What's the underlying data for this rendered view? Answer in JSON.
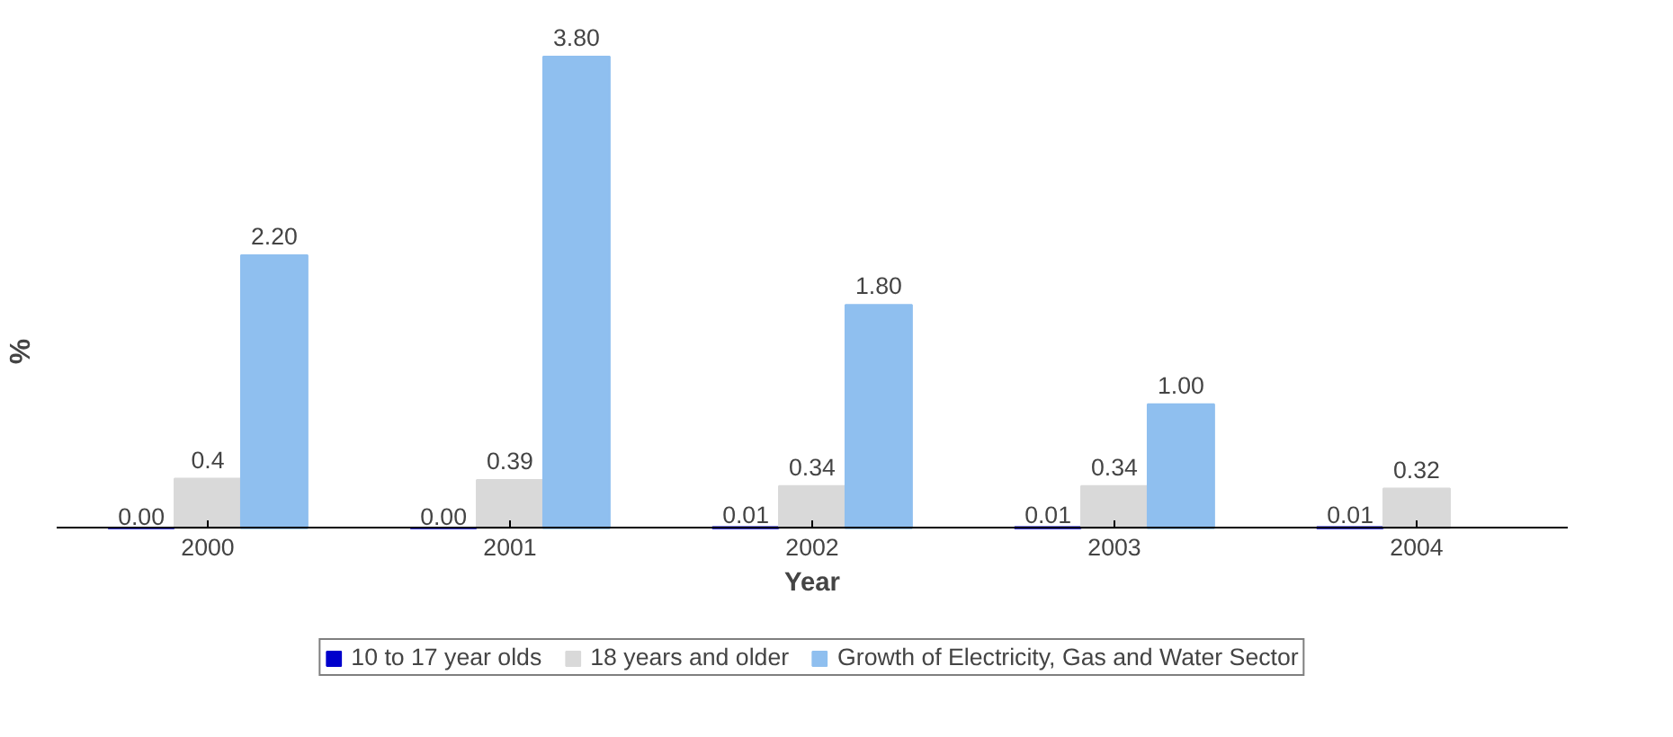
{
  "chart_data": {
    "type": "bar",
    "xlabel": "Year",
    "ylabel": "%",
    "categories": [
      "2000",
      "2001",
      "2002",
      "2003",
      "2004"
    ],
    "series": [
      {
        "name": "10 to 17 year olds",
        "color": "#0000cc",
        "values": [
          0.0,
          0.0,
          0.01,
          0.01,
          0.01
        ],
        "value_labels": [
          "0.00",
          "0.00",
          "0.01",
          "0.01",
          "0.01"
        ]
      },
      {
        "name": "18 years and older",
        "color": "#d9d9d9",
        "values": [
          0.4,
          0.39,
          0.34,
          0.34,
          0.32
        ],
        "value_labels": [
          "0.4",
          "0.39",
          "0.34",
          "0.34",
          "0.32"
        ]
      },
      {
        "name": "Growth of Electricity, Gas and Water Sector",
        "color": "#8fbfef",
        "values": [
          2.2,
          3.8,
          1.8,
          1.0,
          null
        ],
        "value_labels": [
          "2.20",
          "3.80",
          "1.80",
          "1.00",
          null
        ]
      }
    ],
    "grid": false,
    "legend": "bottom"
  }
}
